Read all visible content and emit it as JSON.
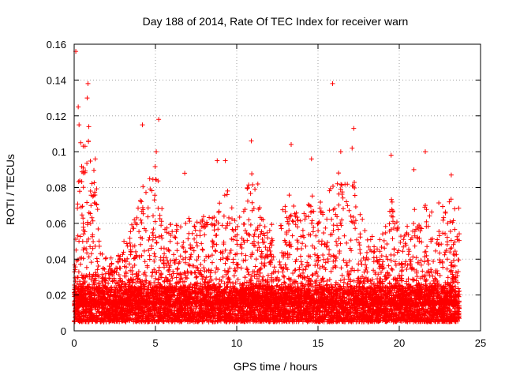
{
  "chart_data": {
    "type": "scatter",
    "title": "Day 188 of 2014, Rate Of TEC Index for receiver warn",
    "xlabel": "GPS time / hours",
    "ylabel": "ROTI / TECUs",
    "xlim": [
      0,
      25
    ],
    "ylim": [
      0,
      0.16
    ],
    "xticks": [
      "0",
      "5",
      "10",
      "15",
      "20",
      "25"
    ],
    "yticks": [
      "0",
      "0.02",
      "0.04",
      "0.06",
      "0.08",
      "0.1",
      "0.12",
      "0.14",
      "0.16"
    ],
    "grid": true,
    "marker": "+",
    "color": "#ff0000",
    "baseline_range": [
      0.005,
      0.025
    ],
    "peaks": [
      {
        "x": 0.1,
        "y": 0.156
      },
      {
        "x": 0.25,
        "y": 0.125
      },
      {
        "x": 0.3,
        "y": 0.115
      },
      {
        "x": 0.4,
        "y": 0.105
      },
      {
        "x": 0.85,
        "y": 0.138
      },
      {
        "x": 0.8,
        "y": 0.13
      },
      {
        "x": 0.9,
        "y": 0.114
      },
      {
        "x": 1.3,
        "y": 0.096
      },
      {
        "x": 4.2,
        "y": 0.115
      },
      {
        "x": 5.2,
        "y": 0.118
      },
      {
        "x": 5.05,
        "y": 0.1
      },
      {
        "x": 6.8,
        "y": 0.088
      },
      {
        "x": 8.8,
        "y": 0.095
      },
      {
        "x": 9.3,
        "y": 0.095
      },
      {
        "x": 10.9,
        "y": 0.106
      },
      {
        "x": 11.3,
        "y": 0.082
      },
      {
        "x": 13.35,
        "y": 0.104
      },
      {
        "x": 14.6,
        "y": 0.096
      },
      {
        "x": 15.9,
        "y": 0.138
      },
      {
        "x": 16.4,
        "y": 0.1
      },
      {
        "x": 17.2,
        "y": 0.113
      },
      {
        "x": 17.1,
        "y": 0.102
      },
      {
        "x": 19.5,
        "y": 0.098
      },
      {
        "x": 20.9,
        "y": 0.09
      },
      {
        "x": 21.6,
        "y": 0.1
      },
      {
        "x": 23.2,
        "y": 0.087
      }
    ],
    "envelope": [
      {
        "x": 0.0,
        "y": 0.03
      },
      {
        "x": 0.3,
        "y": 0.1
      },
      {
        "x": 0.9,
        "y": 0.115
      },
      {
        "x": 1.3,
        "y": 0.09
      },
      {
        "x": 1.7,
        "y": 0.045
      },
      {
        "x": 2.5,
        "y": 0.04
      },
      {
        "x": 3.5,
        "y": 0.06
      },
      {
        "x": 4.2,
        "y": 0.08
      },
      {
        "x": 5.0,
        "y": 0.095
      },
      {
        "x": 5.6,
        "y": 0.06
      },
      {
        "x": 6.5,
        "y": 0.06
      },
      {
        "x": 7.5,
        "y": 0.065
      },
      {
        "x": 8.5,
        "y": 0.065
      },
      {
        "x": 9.3,
        "y": 0.085
      },
      {
        "x": 10.0,
        "y": 0.06
      },
      {
        "x": 10.9,
        "y": 0.09
      },
      {
        "x": 11.5,
        "y": 0.065
      },
      {
        "x": 12.5,
        "y": 0.06
      },
      {
        "x": 13.4,
        "y": 0.085
      },
      {
        "x": 14.0,
        "y": 0.06
      },
      {
        "x": 14.6,
        "y": 0.085
      },
      {
        "x": 15.4,
        "y": 0.07
      },
      {
        "x": 16.0,
        "y": 0.09
      },
      {
        "x": 17.1,
        "y": 0.09
      },
      {
        "x": 18.0,
        "y": 0.055
      },
      {
        "x": 19.0,
        "y": 0.055
      },
      {
        "x": 19.5,
        "y": 0.075
      },
      {
        "x": 20.2,
        "y": 0.05
      },
      {
        "x": 21.0,
        "y": 0.075
      },
      {
        "x": 22.0,
        "y": 0.07
      },
      {
        "x": 23.0,
        "y": 0.075
      },
      {
        "x": 23.7,
        "y": 0.07
      }
    ],
    "x_end": 23.7
  }
}
